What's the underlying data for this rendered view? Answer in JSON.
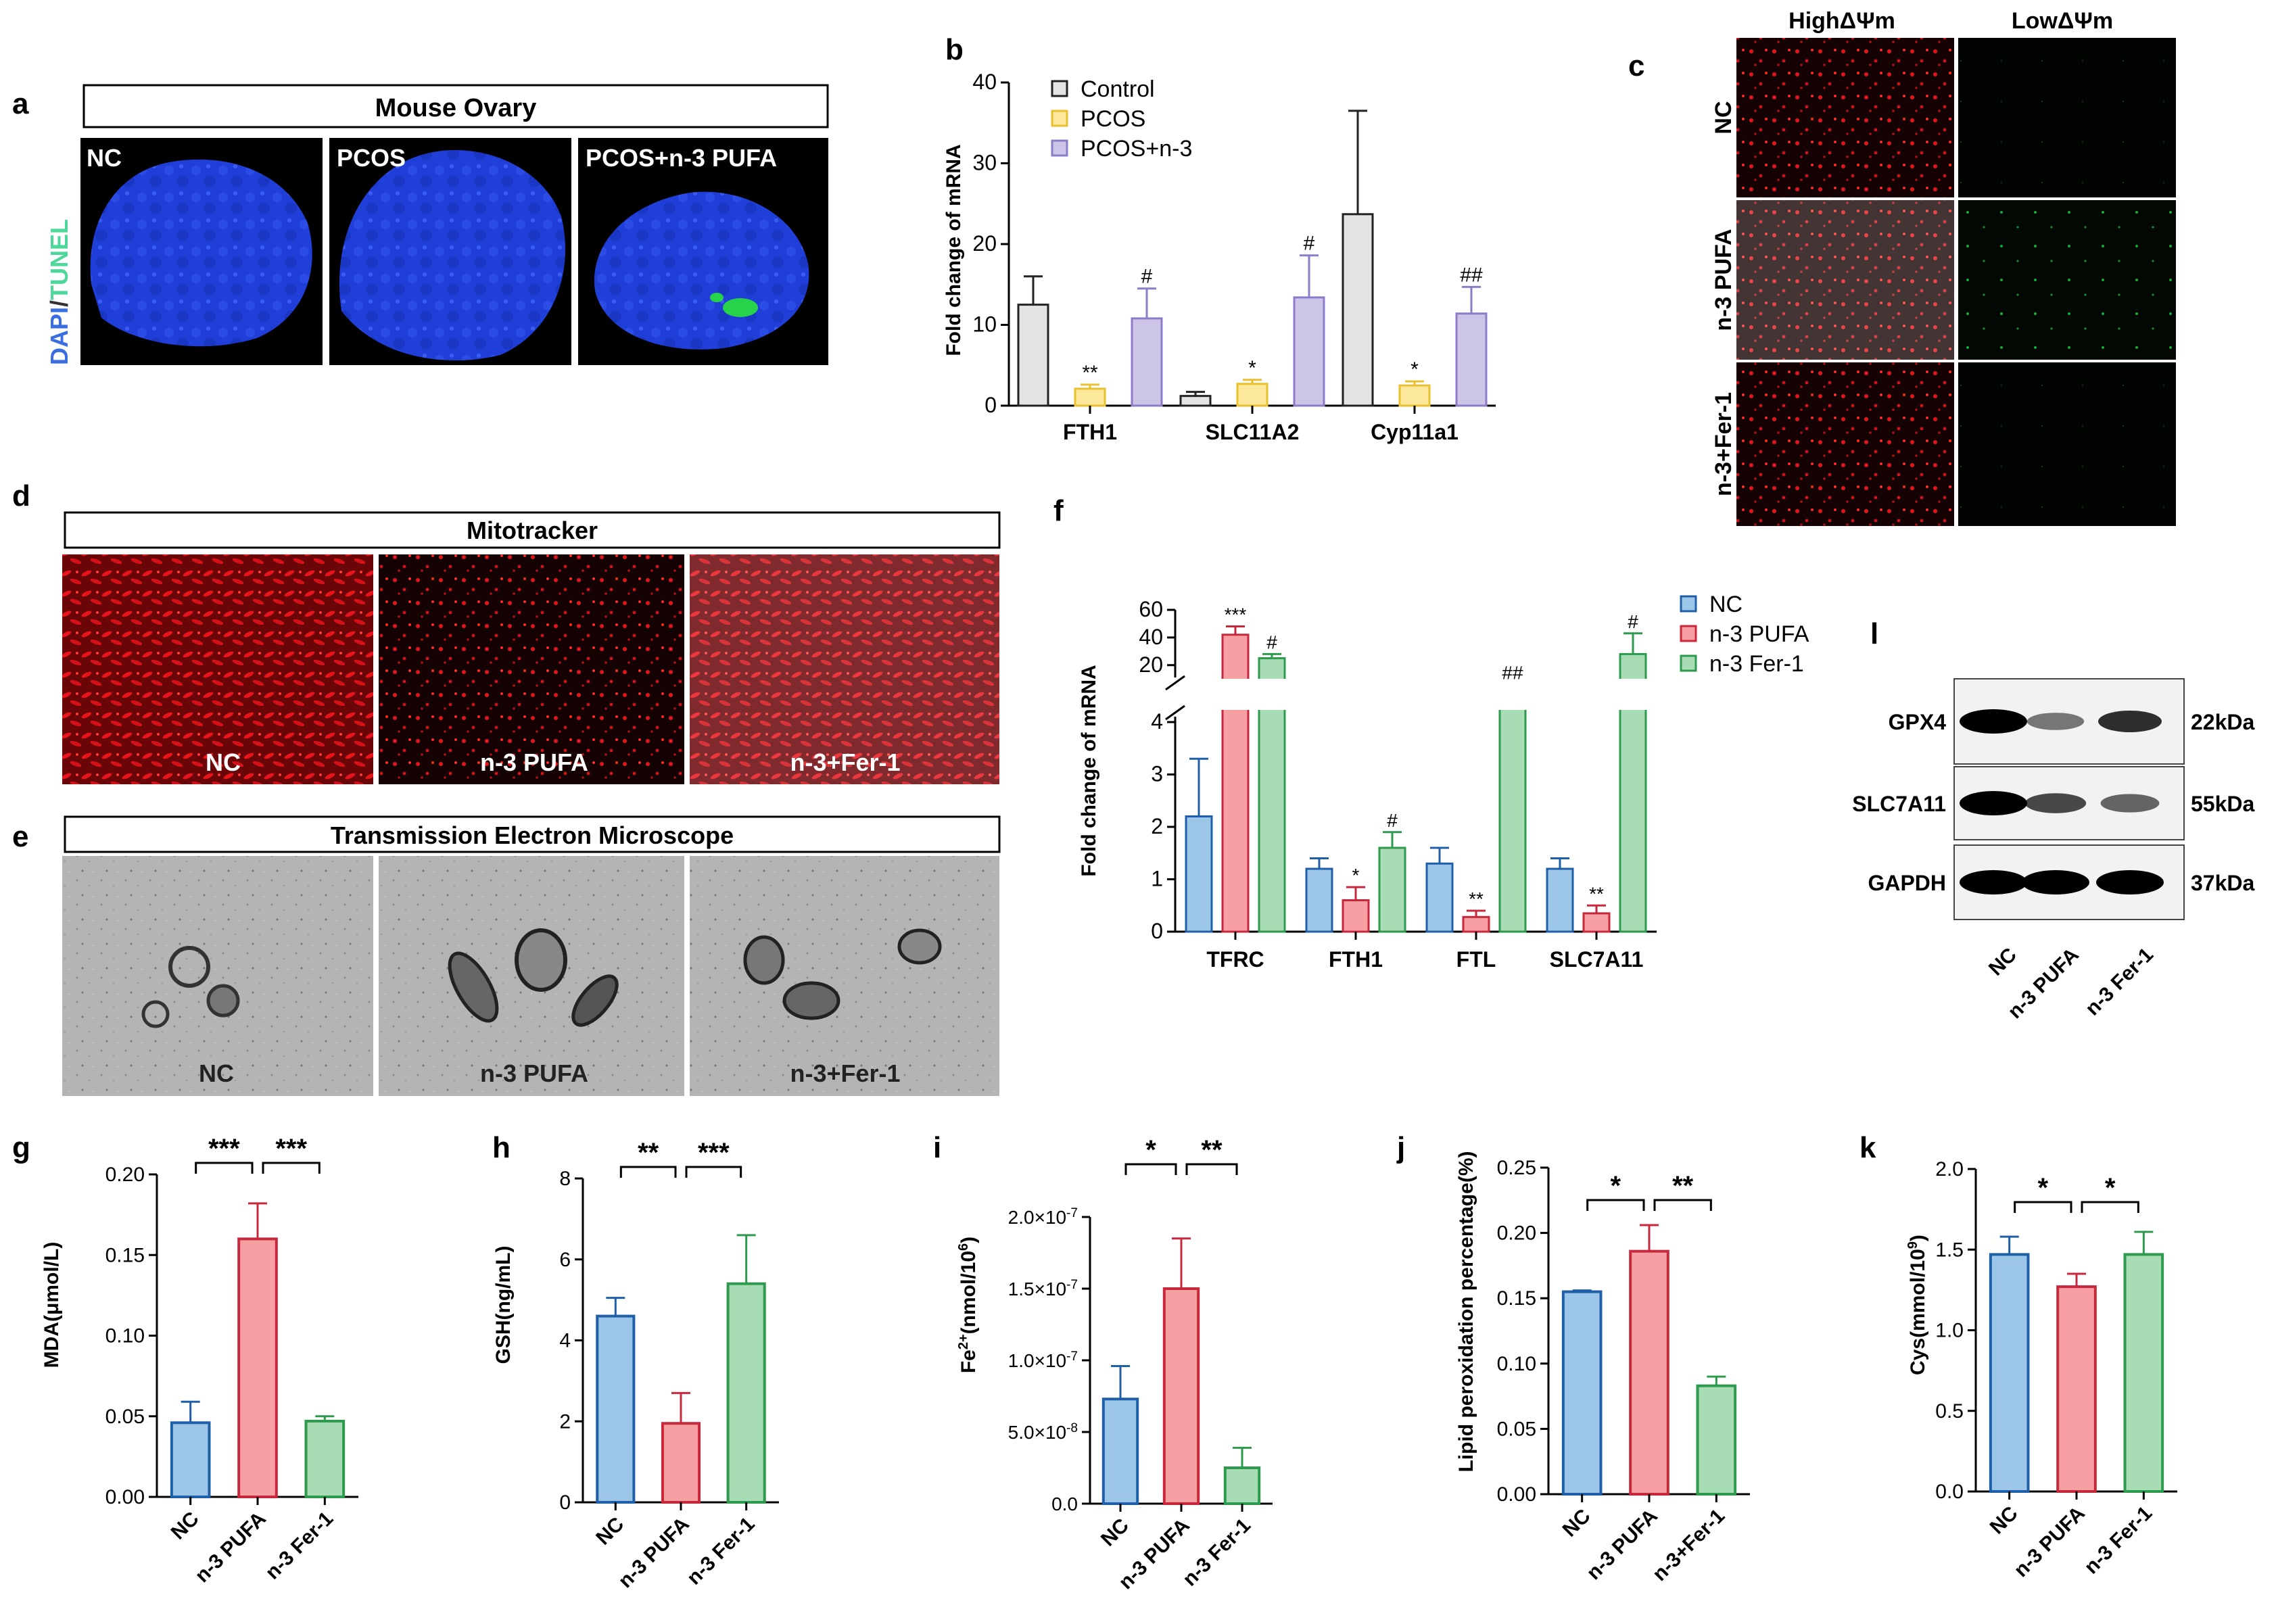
{
  "colors": {
    "blue_fill": "#9cc6e8",
    "blue_stroke": "#1f5fa8",
    "red_fill": "#f7a0a4",
    "red_stroke": "#c8283c",
    "green_fill": "#a8dcb4",
    "green_stroke": "#2e9a4e",
    "grey_fill": "#e4e4e4",
    "grey_stroke": "#222222",
    "yellow_fill": "#fce89a",
    "yellow_stroke": "#e8c030",
    "purple_fill": "#cdc5e8",
    "purple_stroke": "#8c7cc8",
    "dapi_blue": "#1f3fd8",
    "tunel_green": "#27d34a",
    "mito_red": "#e8141c"
  },
  "panel_a": {
    "letter": "a",
    "title": "Mouse Ovary",
    "stain_dapi": "DAPI",
    "stain_slash": "/",
    "stain_tunel": "TUNEL",
    "images": [
      "NC",
      "PCOS",
      "PCOS+n-3 PUFA"
    ]
  },
  "panel_c": {
    "letter": "c",
    "columns": [
      "HighΔΨm",
      "LowΔΨm"
    ],
    "rows": [
      "NC",
      "n-3 PUFA",
      "n-3+Fer-1"
    ]
  },
  "panel_d": {
    "letter": "d",
    "title": "Mitotracker",
    "images": [
      "NC",
      "n-3 PUFA",
      "n-3+Fer-1"
    ]
  },
  "panel_e": {
    "letter": "e",
    "title": "Transmission Electron Microscope",
    "images": [
      "NC",
      "n-3 PUFA",
      "n-3+Fer-1"
    ]
  },
  "panel_l": {
    "letter": "l",
    "bands": [
      "GPX4",
      "SLC7A11",
      "GAPDH"
    ],
    "sizes": [
      "22kDa",
      "55kDa",
      "37kDa"
    ],
    "lanes": [
      "NC",
      "n-3 PUFA",
      "n-3 Fer-1"
    ],
    "intensity": [
      [
        1.0,
        0.35,
        0.75
      ],
      [
        1.0,
        0.6,
        0.45
      ],
      [
        1.0,
        1.0,
        1.0
      ]
    ]
  },
  "chart_data": [
    {
      "panel": "b",
      "type": "bar",
      "ylabel": "Fold change of mRNA",
      "ylim": [
        0,
        40
      ],
      "yticks": [
        "0",
        "10",
        "20",
        "30",
        "40"
      ],
      "categories": [
        "FTH1",
        "SLC11A2",
        "Cyp11a1"
      ],
      "series": [
        {
          "name": "Control",
          "values": [
            12.5,
            1.2,
            23.7
          ],
          "errors": [
            3.5,
            0.5,
            12.8
          ]
        },
        {
          "name": "PCOS",
          "values": [
            2.1,
            2.7,
            2.5
          ],
          "errors": [
            0.5,
            0.5,
            0.5
          ]
        },
        {
          "name": "PCOS+n-3",
          "values": [
            10.8,
            13.4,
            11.4
          ],
          "errors": [
            3.7,
            5.2,
            3.3
          ]
        }
      ],
      "annotations": [
        [
          "",
          "**",
          "#"
        ],
        [
          "",
          "*",
          "#"
        ],
        [
          "",
          "*",
          "##"
        ]
      ],
      "legend": "top-left"
    },
    {
      "panel": "f",
      "type": "bar",
      "ylabel": "Fold change of mRNA",
      "yticks_lower": [
        "0",
        "1",
        "2",
        "3",
        "4"
      ],
      "yticks_upper": [
        "20",
        "40",
        "60"
      ],
      "categories": [
        "TFRC",
        "FTH1",
        "FTL",
        "SLC7A11"
      ],
      "series": [
        {
          "name": "NC",
          "values": [
            2.2,
            1.2,
            1.3,
            1.2
          ],
          "errors": [
            1.1,
            0.2,
            0.3,
            0.2
          ]
        },
        {
          "name": "n-3 PUFA",
          "values": [
            42,
            0.6,
            0.28,
            0.35
          ],
          "errors": [
            6,
            0.25,
            0.12,
            0.15
          ]
        },
        {
          "name": "n-3 Fer-1",
          "values": [
            25,
            1.6,
            5,
            28
          ],
          "errors": [
            3,
            0.3,
            1,
            15
          ]
        }
      ],
      "annotations": [
        [
          "",
          "***",
          "#"
        ],
        [
          "",
          "*",
          "#"
        ],
        [
          "",
          "**",
          "##"
        ],
        [
          "",
          "**",
          "#"
        ]
      ],
      "legend": "top-right"
    },
    {
      "panel": "g",
      "type": "bar",
      "ylabel": "MDA(μmol/L)",
      "ylim": [
        0,
        0.2
      ],
      "yticks": [
        "0.00",
        "0.05",
        "0.10",
        "0.15",
        "0.20"
      ],
      "categories": [
        "NC",
        "n-3 PUFA",
        "n-3 Fer-1"
      ],
      "values": [
        0.046,
        0.16,
        0.047
      ],
      "errors": [
        0.013,
        0.022,
        0.003
      ],
      "significance": [
        "***",
        "***"
      ]
    },
    {
      "panel": "h",
      "type": "bar",
      "ylabel": "GSH(ng/mL)",
      "ylim": [
        0,
        8
      ],
      "yticks": [
        "0",
        "2",
        "4",
        "6",
        "8"
      ],
      "categories": [
        "NC",
        "n-3 PUFA",
        "n-3 Fer-1"
      ],
      "values": [
        4.6,
        1.95,
        5.4
      ],
      "errors": [
        0.45,
        0.75,
        1.2
      ],
      "significance": [
        "**",
        "***"
      ]
    },
    {
      "panel": "i",
      "type": "bar",
      "ylim": [
        0,
        2e-07
      ],
      "ylabel_base": "Fe",
      "ylabel_sup1": "2+",
      "ylabel_mid": "(nmol/10",
      "ylabel_sup2": "6",
      "ylabel_end": ")",
      "ytick_labels": [
        "0.0",
        "5.0×10",
        "1.0×10",
        "1.5×10",
        "2.0×10"
      ],
      "ytick_exps": [
        "",
        "-8",
        "-7",
        "-7",
        "-7"
      ],
      "categories": [
        "NC",
        "n-3 PUFA",
        "n-3 Fer-1"
      ],
      "values": [
        7.3e-08,
        1.5e-07,
        2.5e-08
      ],
      "errors": [
        2.3e-08,
        3.5e-08,
        1.4e-08
      ],
      "significance": [
        "*",
        "**"
      ]
    },
    {
      "panel": "j",
      "type": "bar",
      "ylabel": "Lipid peroxidation percentage(%)",
      "ylim": [
        0,
        0.25
      ],
      "yticks": [
        "0.00",
        "0.05",
        "0.10",
        "0.15",
        "0.20",
        "0.25"
      ],
      "categories": [
        "NC",
        "n-3 PUFA",
        "n-3+Fer-1"
      ],
      "values": [
        0.155,
        0.186,
        0.083
      ],
      "errors": [
        0.001,
        0.02,
        0.007
      ],
      "significance": [
        "*",
        "**"
      ]
    },
    {
      "panel": "k",
      "type": "bar",
      "ylim": [
        0,
        2.0
      ],
      "ylabel_base": "Cys(mmol/10",
      "ylabel_sup": "9",
      "ylabel_end": ")",
      "yticks": [
        "0.0",
        "0.5",
        "1.0",
        "1.5",
        "2.0"
      ],
      "categories": [
        "NC",
        "n-3 PUFA",
        "n-3 Fer-1"
      ],
      "values": [
        1.47,
        1.27,
        1.47
      ],
      "errors": [
        0.11,
        0.08,
        0.14
      ],
      "significance": [
        "*",
        "*"
      ]
    }
  ]
}
